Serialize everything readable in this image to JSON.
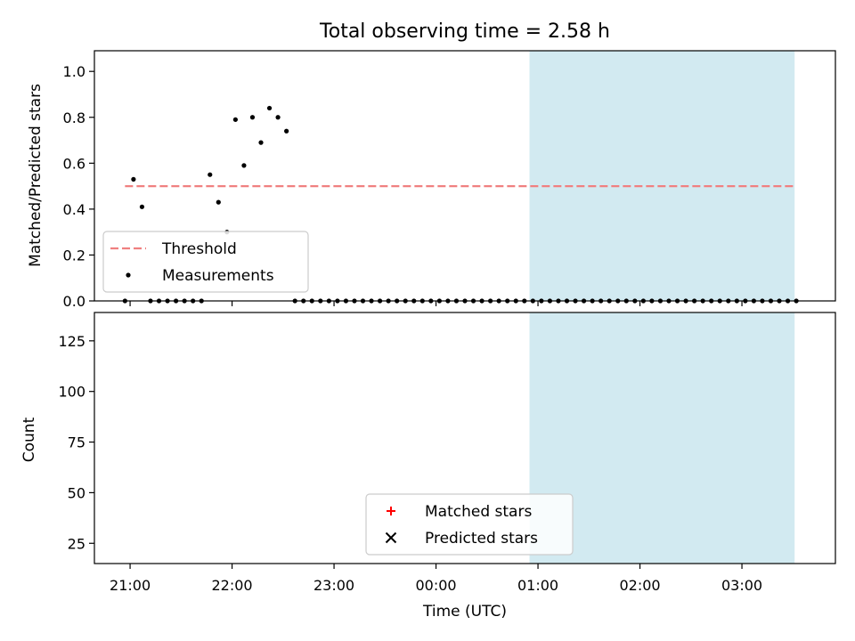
{
  "chart_data": {
    "title": "Total observing time = 2.58 h",
    "xlabel": "Time (UTC)",
    "x_unit": "hours UTC",
    "xlim": [
      "20:39",
      "03:55"
    ],
    "x_ticks": [
      {
        "label": "21:00",
        "value": "21:00"
      },
      {
        "label": "22:00",
        "value": "22:00"
      },
      {
        "label": "23:00",
        "value": "23:00"
      },
      {
        "label": "00:00",
        "value": "00:00"
      },
      {
        "label": "01:00",
        "value": "01:00"
      },
      {
        "label": "02:00",
        "value": "02:00"
      },
      {
        "label": "03:00",
        "value": "03:00"
      }
    ],
    "shaded_region": {
      "x0": "00:55",
      "x1": "03:31",
      "color": "#add8e6"
    },
    "panels": [
      {
        "type": "scatter",
        "ylabel": "Matched/Predicted stars",
        "ylim": [
          0,
          1.09
        ],
        "yticks": [
          "0.0",
          "0.2",
          "0.4",
          "0.6",
          "0.8",
          "1.0"
        ],
        "legend_position": "lower left",
        "threshold": {
          "name": "Threshold",
          "y": 0.5,
          "x0": "20:57",
          "x1": "03:31",
          "color": "#f08080"
        },
        "series": [
          {
            "name": "Measurements",
            "color": "#000000",
            "marker": "dot",
            "x": [
              "20:57",
              "21:02",
              "21:07",
              "21:12",
              "21:17",
              "21:22",
              "21:27",
              "21:32",
              "21:37",
              "21:42",
              "21:47",
              "21:52",
              "21:57",
              "22:02",
              "22:07",
              "22:12",
              "22:17",
              "22:22",
              "22:27",
              "22:32",
              "22:37",
              "22:42",
              "22:47",
              "22:52",
              "22:57",
              "23:02",
              "23:07",
              "23:12",
              "23:17",
              "23:22",
              "23:27",
              "23:32",
              "23:37",
              "23:42",
              "23:47",
              "23:52",
              "23:57",
              "00:02",
              "00:07",
              "00:12",
              "00:17",
              "00:22",
              "00:27",
              "00:32",
              "00:37",
              "00:42",
              "00:47",
              "00:52",
              "00:57",
              "01:02",
              "01:07",
              "01:12",
              "01:17",
              "01:22",
              "01:27",
              "01:32",
              "01:37",
              "01:42",
              "01:47",
              "01:52",
              "01:57",
              "02:02",
              "02:07",
              "02:12",
              "02:17",
              "02:22",
              "02:27",
              "02:32",
              "02:37",
              "02:42",
              "02:47",
              "02:52",
              "02:57",
              "03:02",
              "03:07",
              "03:12",
              "03:17",
              "03:22",
              "03:27",
              "03:32"
            ],
            "y": [
              0.0,
              0.53,
              0.41,
              0.0,
              0.0,
              0.0,
              0.0,
              0.0,
              0.0,
              0.0,
              0.55,
              0.43,
              0.3,
              0.79,
              0.59,
              0.8,
              0.69,
              0.84,
              0.8,
              0.74,
              0.0,
              0.0,
              0.0,
              0.0,
              0.0,
              0.0,
              0.0,
              0.0,
              0.0,
              0.0,
              0.0,
              0.0,
              0.0,
              0.0,
              0.0,
              0.0,
              0.0,
              0.0,
              0.0,
              0.0,
              0.0,
              0.0,
              0.0,
              0.0,
              0.0,
              0.0,
              0.0,
              0.0,
              0.0,
              0.0,
              0.0,
              0.0,
              0.0,
              0.0,
              0.0,
              0.0,
              0.0,
              0.0,
              0.0,
              0.0,
              0.0,
              0.0,
              0.0,
              0.0,
              0.0,
              0.0,
              0.0,
              0.0,
              0.0,
              0.0,
              0.0,
              0.0,
              0.0,
              0.0,
              0.0,
              0.0,
              0.0,
              0.0,
              0.0,
              0.0
            ]
          }
        ]
      },
      {
        "type": "scatter",
        "ylabel": "Count",
        "ylim": [
          15,
          139
        ],
        "yticks": [
          "25",
          "50",
          "75",
          "100",
          "125"
        ],
        "legend_position": "lower center",
        "series": [
          {
            "name": "Matched stars",
            "color": "#ff0000",
            "marker": "plus",
            "x": [],
            "y": []
          },
          {
            "name": "Predicted stars",
            "color": "#000000",
            "marker": "x",
            "x": [],
            "y": []
          }
        ]
      }
    ]
  }
}
